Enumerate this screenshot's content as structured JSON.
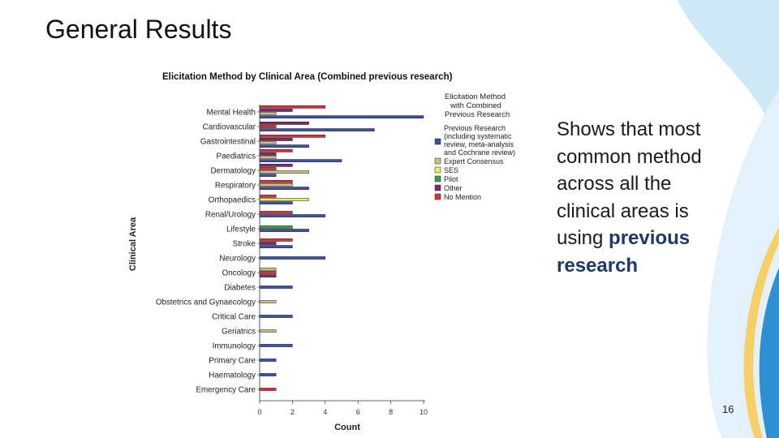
{
  "slide": {
    "title": "General Results",
    "body_lines": [
      "Shows that most",
      "common method",
      "across all the",
      "clinical areas is",
      "using "
    ],
    "body_highlight_1": "previous",
    "body_highlight_2": "research",
    "page_number": "16"
  },
  "colors": {
    "previous_research": "#3f51a3",
    "expert_consensus": "#c9c08a",
    "ses": "#ecea6c",
    "pilot": "#3ea140",
    "other": "#7a2a6e",
    "no_mention": "#d8333a",
    "highlight_text": "#1f3864",
    "deco_light_blue": "#cfe8f6",
    "deco_blue": "#2f8fd0",
    "deco_yellow": "#f6cf6a"
  },
  "chart_data": {
    "type": "bar",
    "orientation": "horizontal",
    "title": "Elicitation Method by Clinical Area (Combined previous research)",
    "xlabel": "Count",
    "ylabel": "Clinical Area",
    "xlim": [
      0,
      10
    ],
    "xticks": [
      0,
      2,
      4,
      6,
      8,
      10
    ],
    "grid": false,
    "legend_title": "Elicitation Method with Combined Previous Research",
    "legend_position": "right",
    "legend": [
      {
        "key": "previous_research",
        "label": "Previous Research (including systematic review, meta-analysis and Cochrane review)"
      },
      {
        "key": "expert_consensus",
        "label": "Expert Consensus"
      },
      {
        "key": "ses",
        "label": "SES"
      },
      {
        "key": "pilot",
        "label": "Pilot"
      },
      {
        "key": "other",
        "label": "Other"
      },
      {
        "key": "no_mention",
        "label": "No Mention"
      }
    ],
    "categories": [
      {
        "name": "Mental Health",
        "bars": [
          {
            "key": "no_mention",
            "value": 4
          },
          {
            "key": "other",
            "value": 2
          },
          {
            "key": "expert_consensus",
            "value": 1
          },
          {
            "key": "previous_research",
            "value": 10
          }
        ]
      },
      {
        "name": "Cardiovascular",
        "bars": [
          {
            "key": "other",
            "value": 3
          },
          {
            "key": "no_mention",
            "value": 1
          },
          {
            "key": "previous_research",
            "value": 7
          }
        ]
      },
      {
        "name": "Gastrointestinal",
        "bars": [
          {
            "key": "no_mention",
            "value": 4
          },
          {
            "key": "other",
            "value": 2
          },
          {
            "key": "expert_consensus",
            "value": 1
          },
          {
            "key": "previous_research",
            "value": 3
          }
        ]
      },
      {
        "name": "Paediatrics",
        "bars": [
          {
            "key": "no_mention",
            "value": 2
          },
          {
            "key": "other",
            "value": 1
          },
          {
            "key": "expert_consensus",
            "value": 1
          },
          {
            "key": "previous_research",
            "value": 5
          }
        ]
      },
      {
        "name": "Dermatology",
        "bars": [
          {
            "key": "other",
            "value": 2
          },
          {
            "key": "no_mention",
            "value": 1
          },
          {
            "key": "expert_consensus",
            "value": 3
          },
          {
            "key": "previous_research",
            "value": 1
          }
        ]
      },
      {
        "name": "Respiratory",
        "bars": [
          {
            "key": "no_mention",
            "value": 2
          },
          {
            "key": "expert_consensus",
            "value": 2
          },
          {
            "key": "previous_research",
            "value": 3
          }
        ]
      },
      {
        "name": "Orthopaedics",
        "bars": [
          {
            "key": "no_mention",
            "value": 1
          },
          {
            "key": "ses",
            "value": 3
          },
          {
            "key": "previous_research",
            "value": 2
          }
        ]
      },
      {
        "name": "Renal/Urology",
        "bars": [
          {
            "key": "no_mention",
            "value": 2
          },
          {
            "key": "previous_research",
            "value": 4
          }
        ]
      },
      {
        "name": "Lifestyle",
        "bars": [
          {
            "key": "pilot",
            "value": 2
          },
          {
            "key": "previous_research",
            "value": 3
          }
        ]
      },
      {
        "name": "Stroke",
        "bars": [
          {
            "key": "no_mention",
            "value": 2
          },
          {
            "key": "other",
            "value": 1
          },
          {
            "key": "previous_research",
            "value": 2
          }
        ]
      },
      {
        "name": "Neurology",
        "bars": [
          {
            "key": "previous_research",
            "value": 4
          }
        ]
      },
      {
        "name": "Oncology",
        "bars": [
          {
            "key": "expert_consensus",
            "value": 1
          },
          {
            "key": "no_mention",
            "value": 1
          },
          {
            "key": "other",
            "value": 1
          }
        ]
      },
      {
        "name": "Diabetes",
        "bars": [
          {
            "key": "previous_research",
            "value": 2
          }
        ]
      },
      {
        "name": "Obstetrics and Gynaecology",
        "bars": [
          {
            "key": "expert_consensus",
            "value": 1
          }
        ]
      },
      {
        "name": "Critical Care",
        "bars": [
          {
            "key": "previous_research",
            "value": 2
          }
        ]
      },
      {
        "name": "Geriatrics",
        "bars": [
          {
            "key": "expert_consensus",
            "value": 1
          }
        ]
      },
      {
        "name": "Immunology",
        "bars": [
          {
            "key": "previous_research",
            "value": 2
          }
        ]
      },
      {
        "name": "Primary Care",
        "bars": [
          {
            "key": "previous_research",
            "value": 1
          }
        ]
      },
      {
        "name": "Haematology",
        "bars": [
          {
            "key": "previous_research",
            "value": 1
          }
        ]
      },
      {
        "name": "Emergency Care",
        "bars": [
          {
            "key": "no_mention",
            "value": 1
          }
        ]
      }
    ]
  }
}
